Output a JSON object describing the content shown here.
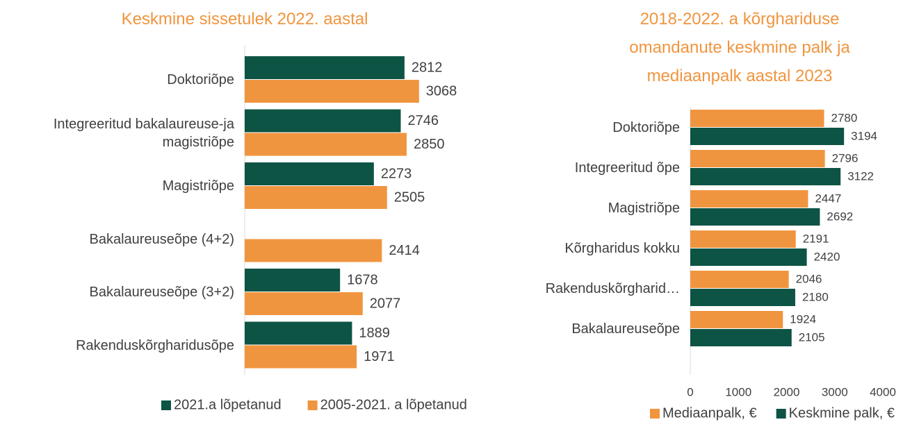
{
  "chart_data": [
    {
      "type": "bar",
      "orientation": "horizontal",
      "title": "Keskmine sissetulek 2022. aastal",
      "categories": [
        "Doktoriõpe",
        "Integreeritud bakalaureuse-ja magistriõpe",
        "Magistriõpe",
        "Bakalaureuseõpe (4+2)",
        "Bakalaureuseõpe (3+2)",
        "Rakenduskõrgharidusõpe"
      ],
      "series": [
        {
          "name": "2021.a lõpetanud",
          "color": "#0d5445",
          "values": [
            2812,
            2746,
            2273,
            null,
            1678,
            1889
          ]
        },
        {
          "name": "2005-2021. a lõpetanud",
          "color": "#f0953f",
          "values": [
            3068,
            2850,
            2505,
            2414,
            2077,
            1971
          ]
        }
      ],
      "xlim": [
        0,
        4000
      ],
      "legend": "bottom"
    },
    {
      "type": "bar",
      "orientation": "horizontal",
      "title": "2018-2022. a kõrghariduse omandanute keskmine palk ja mediaanpalk aastal 2023",
      "categories": [
        "Doktoriõpe",
        "Integreeritud õpe",
        "Magistriõpe",
        "Kõrgharidus kokku",
        "Rakenduskõrgharid…",
        "Bakalaureuseõpe"
      ],
      "series": [
        {
          "name": "Mediaanpalk, €",
          "color": "#f0953f",
          "values": [
            2780,
            2796,
            2447,
            2191,
            2046,
            1924
          ]
        },
        {
          "name": "Keskmine palk, €",
          "color": "#0d5445",
          "values": [
            3194,
            3122,
            2692,
            2420,
            2180,
            2105
          ]
        }
      ],
      "xlim": [
        0,
        4000
      ],
      "xticks": [
        0,
        1000,
        2000,
        3000,
        4000
      ],
      "legend": "bottom"
    }
  ]
}
